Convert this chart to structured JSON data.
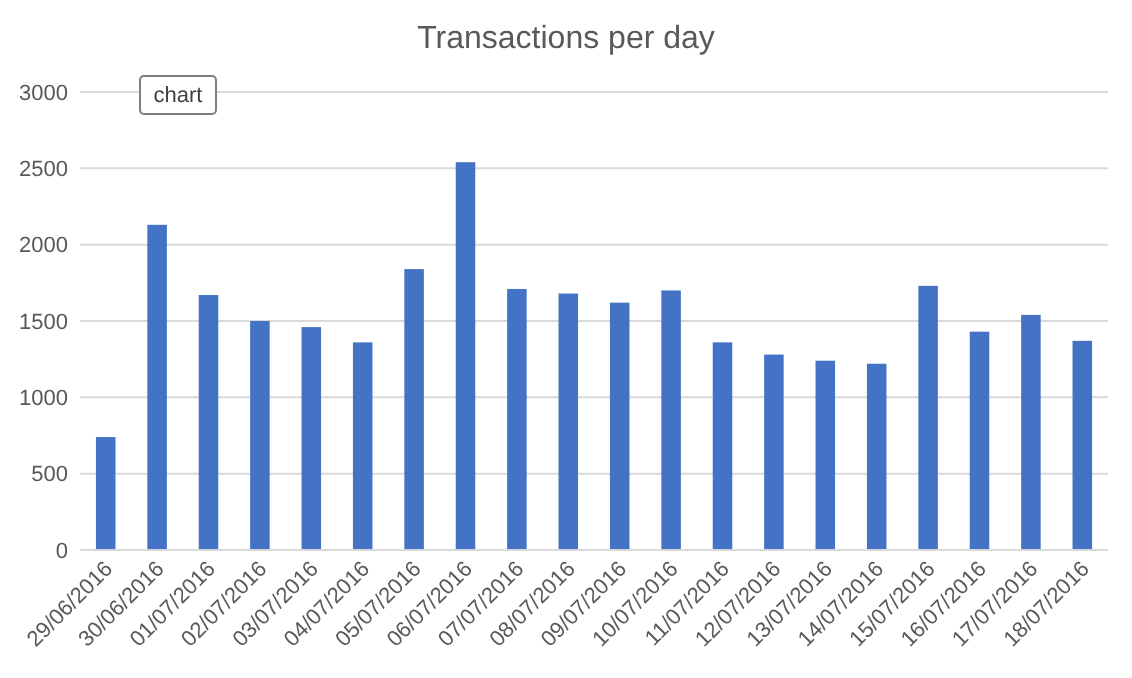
{
  "chart_data": {
    "type": "bar",
    "title": "Transactions per day",
    "categories": [
      "29/06/2016",
      "30/06/2016",
      "01/07/2016",
      "02/07/2016",
      "03/07/2016",
      "04/07/2016",
      "05/07/2016",
      "06/07/2016",
      "07/07/2016",
      "08/07/2016",
      "09/07/2016",
      "10/07/2016",
      "11/07/2016",
      "12/07/2016",
      "13/07/2016",
      "14/07/2016",
      "15/07/2016",
      "16/07/2016",
      "17/07/2016",
      "18/07/2016"
    ],
    "values": [
      740,
      2130,
      1670,
      1500,
      1460,
      1360,
      1840,
      2540,
      1710,
      1680,
      1620,
      1700,
      1360,
      1280,
      1240,
      1220,
      1730,
      1430,
      1540,
      1370
    ],
    "color": "#4472c4",
    "ylim": [
      0,
      3000
    ],
    "yticks": [
      0,
      500,
      1000,
      1500,
      2000,
      2500,
      3000
    ],
    "grid": "y",
    "annotations": [
      "chart"
    ]
  }
}
